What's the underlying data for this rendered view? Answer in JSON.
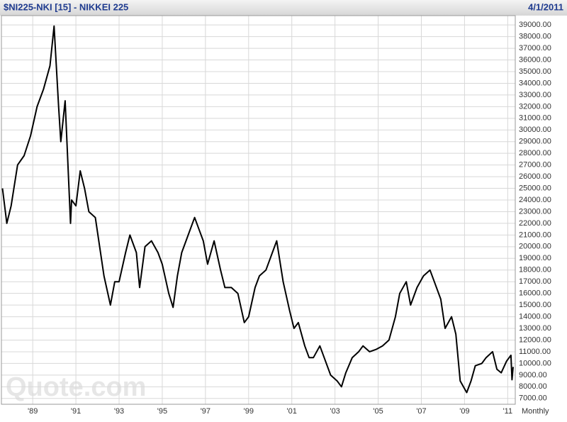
{
  "chart_data": {
    "type": "line",
    "title": "$NI225-NKI [15] - NIKKEI 225",
    "date": "4/1/2011",
    "period": "Monthly",
    "watermark": "Quote.com",
    "color": "#000000",
    "grid": true,
    "y_axis_side": "right",
    "xlim": [
      1987.55,
      2011.35
    ],
    "xticks": [
      {
        "value": 1989,
        "label": "'89"
      },
      {
        "value": 1991,
        "label": "'91"
      },
      {
        "value": 1993,
        "label": "'93"
      },
      {
        "value": 1995,
        "label": "'95"
      },
      {
        "value": 1997,
        "label": "'97"
      },
      {
        "value": 1999,
        "label": "'99"
      },
      {
        "value": 2001,
        "label": "'01"
      },
      {
        "value": 2003,
        "label": "'03"
      },
      {
        "value": 2005,
        "label": "'05"
      },
      {
        "value": 2007,
        "label": "'07"
      },
      {
        "value": 2009,
        "label": "'09"
      },
      {
        "value": 2011,
        "label": "'11"
      }
    ],
    "ylim": [
      6500,
      39800
    ],
    "yticks": [
      {
        "value": 7000,
        "label": "7000.00"
      },
      {
        "value": 8000,
        "label": "8000.00"
      },
      {
        "value": 9000,
        "label": "9000.00"
      },
      {
        "value": 10000,
        "label": "10000.00"
      },
      {
        "value": 11000,
        "label": "11000.00"
      },
      {
        "value": 12000,
        "label": "12000.00"
      },
      {
        "value": 13000,
        "label": "13000.00"
      },
      {
        "value": 14000,
        "label": "14000.00"
      },
      {
        "value": 15000,
        "label": "15000.00"
      },
      {
        "value": 16000,
        "label": "16000.00"
      },
      {
        "value": 17000,
        "label": "17000.00"
      },
      {
        "value": 18000,
        "label": "18000.00"
      },
      {
        "value": 19000,
        "label": "19000.00"
      },
      {
        "value": 20000,
        "label": "20000.00"
      },
      {
        "value": 21000,
        "label": "21000.00"
      },
      {
        "value": 22000,
        "label": "22000.00"
      },
      {
        "value": 23000,
        "label": "23000.00"
      },
      {
        "value": 24000,
        "label": "24000.00"
      },
      {
        "value": 25000,
        "label": "25000.00"
      },
      {
        "value": 26000,
        "label": "26000.00"
      },
      {
        "value": 27000,
        "label": "27000.00"
      },
      {
        "value": 28000,
        "label": "28000.00"
      },
      {
        "value": 29000,
        "label": "29000.00"
      },
      {
        "value": 30000,
        "label": "30000.00"
      },
      {
        "value": 31000,
        "label": "31000.00"
      },
      {
        "value": 32000,
        "label": "32000.00"
      },
      {
        "value": 33000,
        "label": "33000.00"
      },
      {
        "value": 34000,
        "label": "34000.00"
      },
      {
        "value": 35000,
        "label": "35000.00"
      },
      {
        "value": 36000,
        "label": "36000.00"
      },
      {
        "value": 37000,
        "label": "37000.00"
      },
      {
        "value": 38000,
        "label": "38000.00"
      },
      {
        "value": 39000,
        "label": "39000.00"
      }
    ],
    "x": [
      1987.6,
      1987.8,
      1988.0,
      1988.3,
      1988.6,
      1988.9,
      1989.2,
      1989.5,
      1989.8,
      1989.99,
      1990.2,
      1990.3,
      1990.5,
      1990.75,
      1990.8,
      1991.0,
      1991.2,
      1991.4,
      1991.6,
      1991.9,
      1992.1,
      1992.3,
      1992.6,
      1992.8,
      1993.0,
      1993.3,
      1993.5,
      1993.8,
      1993.95,
      1994.2,
      1994.5,
      1994.8,
      1995.0,
      1995.3,
      1995.5,
      1995.7,
      1995.9,
      1996.2,
      1996.5,
      1996.7,
      1996.9,
      1997.1,
      1997.4,
      1997.7,
      1997.9,
      1998.2,
      1998.5,
      1998.8,
      1999.0,
      1999.3,
      1999.5,
      1999.8,
      2000.1,
      2000.3,
      2000.6,
      2000.9,
      2001.1,
      2001.3,
      2001.6,
      2001.8,
      2002.0,
      2002.3,
      2002.5,
      2002.8,
      2003.1,
      2003.3,
      2003.5,
      2003.8,
      2004.1,
      2004.3,
      2004.6,
      2004.9,
      2005.2,
      2005.5,
      2005.8,
      2006.0,
      2006.3,
      2006.5,
      2006.8,
      2007.1,
      2007.4,
      2007.6,
      2007.9,
      2008.1,
      2008.4,
      2008.6,
      2008.8,
      2009.1,
      2009.3,
      2009.5,
      2009.8,
      2010.0,
      2010.3,
      2010.5,
      2010.7,
      2010.95,
      2011.15,
      2011.2,
      2011.25
    ],
    "values": [
      25000,
      22000,
      23500,
      27000,
      27800,
      29500,
      32000,
      33500,
      35500,
      38900,
      32000,
      29000,
      32500,
      22000,
      24000,
      23500,
      26500,
      25000,
      23000,
      22500,
      20000,
      17500,
      15000,
      17000,
      17000,
      19500,
      21000,
      19500,
      16500,
      20000,
      20500,
      19500,
      18500,
      16000,
      14800,
      17500,
      19500,
      21000,
      22500,
      21500,
      20500,
      18500,
      20500,
      18000,
      16500,
      16500,
      16000,
      13500,
      14000,
      16500,
      17500,
      18000,
      19500,
      20500,
      17000,
      14500,
      13000,
      13500,
      11500,
      10500,
      10500,
      11500,
      10500,
      9000,
      8500,
      8000,
      9200,
      10500,
      11000,
      11500,
      11000,
      11200,
      11500,
      12000,
      14000,
      16000,
      17000,
      15000,
      16500,
      17500,
      18000,
      17000,
      15500,
      13000,
      14000,
      12500,
      8500,
      7500,
      8500,
      9800,
      10000,
      10500,
      11000,
      9500,
      9200,
      10200,
      10700,
      8600,
      9700
    ]
  }
}
